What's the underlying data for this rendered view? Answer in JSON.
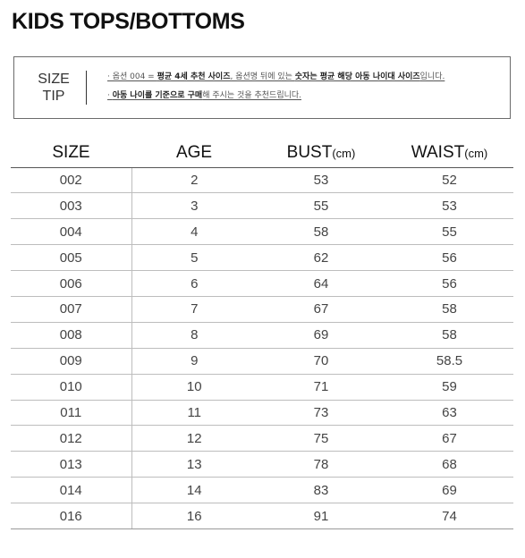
{
  "page": {
    "title": "KIDS TOPS/BOTTOMS"
  },
  "size_tip": {
    "label_line1": "SIZE",
    "label_line2": "TIP",
    "line1_parts": [
      "· 옵션 004 = ",
      "평균 4세 추천 사이즈",
      ", 옵션명 뒤에 있는 ",
      "숫자는 평균 해당 아동 나이대 사이즈",
      "입니다."
    ],
    "line2_parts": [
      "· ",
      "아동 나이를 기준으로 구매",
      "해 주시는 것을 추천드립니다."
    ]
  },
  "table": {
    "headers": {
      "size": "SIZE",
      "age": "AGE",
      "bust": "BUST",
      "bust_unit": "(cm)",
      "waist": "WAIST",
      "waist_unit": "(cm)"
    },
    "rows": [
      {
        "size": "002",
        "age": "2",
        "bust": "53",
        "waist": "52"
      },
      {
        "size": "003",
        "age": "3",
        "bust": "55",
        "waist": "53"
      },
      {
        "size": "004",
        "age": "4",
        "bust": "58",
        "waist": "55"
      },
      {
        "size": "005",
        "age": "5",
        "bust": "62",
        "waist": "56"
      },
      {
        "size": "006",
        "age": "6",
        "bust": "64",
        "waist": "56"
      },
      {
        "size": "007",
        "age": "7",
        "bust": "67",
        "waist": "58"
      },
      {
        "size": "008",
        "age": "8",
        "bust": "69",
        "waist": "58"
      },
      {
        "size": "009",
        "age": "9",
        "bust": "70",
        "waist": "58.5"
      },
      {
        "size": "010",
        "age": "10",
        "bust": "71",
        "waist": "59"
      },
      {
        "size": "011",
        "age": "11",
        "bust": "73",
        "waist": "63"
      },
      {
        "size": "012",
        "age": "12",
        "bust": "75",
        "waist": "67"
      },
      {
        "size": "013",
        "age": "13",
        "bust": "78",
        "waist": "68"
      },
      {
        "size": "014",
        "age": "14",
        "bust": "83",
        "waist": "69"
      },
      {
        "size": "016",
        "age": "16",
        "bust": "91",
        "waist": "74"
      }
    ]
  },
  "colors": {
    "title": "#111111",
    "text": "#444444",
    "rule": "#bdbdbd"
  }
}
